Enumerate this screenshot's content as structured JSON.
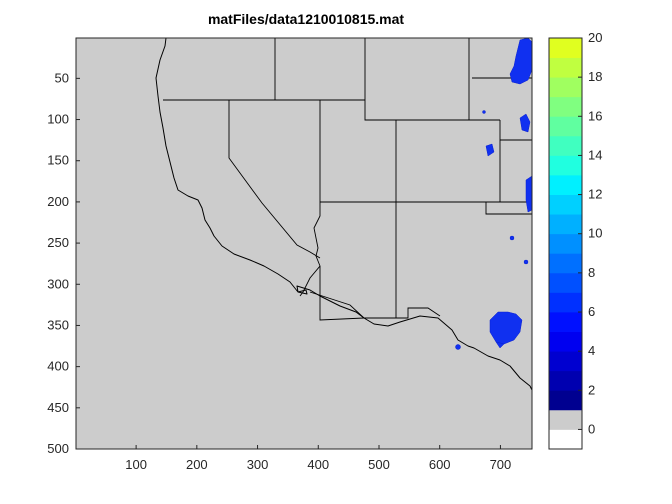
{
  "chart_data": {
    "type": "heatmap",
    "title": "matFiles/data1210010815.mat",
    "xlabel": "",
    "ylabel": "",
    "xlim": [
      1,
      752
    ],
    "ylim": [
      1,
      500
    ],
    "y_reversed": true,
    "x_ticks": [
      100,
      200,
      300,
      400,
      500,
      600,
      700
    ],
    "y_ticks": [
      50,
      100,
      150,
      200,
      250,
      300,
      350,
      400,
      450,
      500
    ],
    "background_color": "#cccccc",
    "boundary_color": "#000000",
    "colorbar": {
      "min": -1,
      "max": 20,
      "step": 1,
      "ticks": [
        0,
        2,
        4,
        6,
        8,
        10,
        12,
        14,
        16,
        18,
        20
      ],
      "colors": [
        "#ffffff",
        "#cccccc",
        "#000090",
        "#0000b0",
        "#0000d0",
        "#0000f0",
        "#0010ff",
        "#0030ff",
        "#0050ff",
        "#0070ff",
        "#0090ff",
        "#00b0ff",
        "#00d0ff",
        "#00f0ff",
        "#20ffe0",
        "#40ffc0",
        "#60ffa0",
        "#80ff80",
        "#a0ff60",
        "#c0ff40",
        "#e0ff20",
        "#ffff00",
        "#ffe000",
        "#ffc000",
        "#ffa000",
        "#ff8000",
        "#ff6000",
        "#ff4000",
        "#ff2000",
        "#ff0000",
        "#e00000",
        "#c00000",
        "#a00000"
      ]
    },
    "precip_patches": [
      {
        "region": "north-east corner",
        "value": 4
      },
      {
        "region": "east edge",
        "value": 4
      },
      {
        "region": "south-east cluster",
        "value": 4
      }
    ]
  }
}
